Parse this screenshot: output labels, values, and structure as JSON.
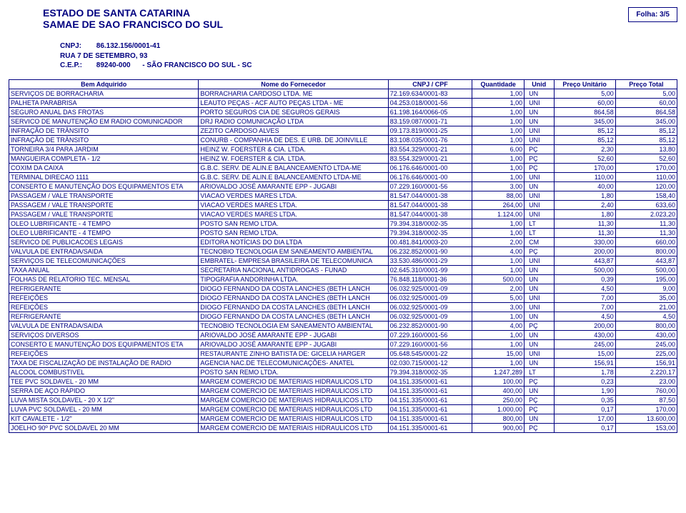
{
  "header": {
    "org_line1": "ESTADO DE SANTA CATARINA",
    "org_line2": "SAMAE DE SAO FRANCISCO DO SUL",
    "folha_label": "Folha: 3/5",
    "cnpj_label": "CNPJ:",
    "cnpj_value": "86.132.156/0001-41",
    "rua": "RUA 7 DE SETEMBRO, 93",
    "cep_label": "C.E.P.:",
    "cep_value": "89240-000",
    "cep_city": "- SÃO FRANCISCO DO SUL - SC"
  },
  "table": {
    "columns": {
      "bem": "Bem Adquirido",
      "forn": "Nome do Fornecedor",
      "cnpj": "CNPJ / CPF",
      "qtd": "Quantidade",
      "unid": "Unid",
      "pu": "Preço Unitário",
      "pt": "Preço Total"
    },
    "rows": [
      [
        "SERVIÇOS DE BORRACHARIA",
        "BORRACHARIA CARDOSO LTDA. ME",
        "72.169.634/0001-83",
        "1,00",
        "UN",
        "5,00",
        "5,00"
      ],
      [
        "PALHETA PARABRISA",
        "LEAUTO PEÇAS - ACF AUTO PEÇAS LTDA - ME",
        "04.253.018/0001-56",
        "1,00",
        "UNI",
        "60,00",
        "60,00"
      ],
      [
        "SEGURO ANUAL DAS FROTAS",
        "PORTO SEGUROS CIA DE SEGUROS GERAIS",
        "61.198.164/0066-05",
        "1,00",
        "UN",
        "864,58",
        "864,58"
      ],
      [
        "SERVICO DE MANUTENÇÃO EM RADIO COMUNICADOR",
        "DRJ RADIO COMUNICAÇÃO LTDA",
        "83.159.087/0001-71",
        "1,00",
        "UN",
        "345,00",
        "345,00"
      ],
      [
        "INFRAÇÃO DE TRÂNSITO",
        "ZEZITO CARDOSO ALVES",
        "09.173.819/0001-25",
        "1,00",
        "UNI",
        "85,12",
        "85,12"
      ],
      [
        "INFRAÇÃO DE TRÂNSITO",
        "CONURB - COMPANHIA DE DES. E URB. DE JOINVILLE",
        "83.108.035/0001-76",
        "1,00",
        "UNI",
        "85,12",
        "85,12"
      ],
      [
        "TORNEIRA 3/4 PARA JARDIM",
        "HEINZ W. FOERSTER & CIA. LTDA.",
        "83.554.329/0001-21",
        "6,00",
        "PÇ",
        "2,30",
        "13,80"
      ],
      [
        "MANGUEIRA COMPLETA - 1/2",
        "HEINZ W. FOERSTER & CIA. LTDA.",
        "83.554.329/0001-21",
        "1,00",
        "PÇ",
        "52,60",
        "52,60"
      ],
      [
        "COXIM DA CAIXA",
        "G.B.C. SERV. DE ALIN.E BALANCEAMENTO LTDA-ME",
        "06.176.646/0001-00",
        "1,00",
        "PÇ",
        "170,00",
        "170,00"
      ],
      [
        "TERMINAL DIRECAO 1111",
        "G.B.C. SERV. DE ALIN.E BALANCEAMENTO LTDA-ME",
        "06.176.646/0001-00",
        "1,00",
        "UNI",
        "110,00",
        "110,00"
      ],
      [
        "CONSERTO E MANUTENÇÃO DOS EQUIPAMENTOS ETA",
        "ARIOVALDO JOSÉ AMARANTE EPP - JUGABI",
        "07.229.160/0001-56",
        "3,00",
        "UN",
        "40,00",
        "120,00"
      ],
      [
        "PASSAGEM / VALE TRANSPORTE",
        "VIACAO VERDES MARES LTDA.",
        "81.547.044/0001-38",
        "88,00",
        "UNI",
        "1,80",
        "158,40"
      ],
      [
        "PASSAGEM / VALE TRANSPORTE",
        "VIACAO VERDES MARES LTDA.",
        "81.547.044/0001-38",
        "264,00",
        "UNI",
        "2,40",
        "633,60"
      ],
      [
        "PASSAGEM / VALE TRANSPORTE",
        "VIACAO VERDES MARES LTDA.",
        "81.547.044/0001-38",
        "1.124,00",
        "UNI",
        "1,80",
        "2.023,20"
      ],
      [
        "OLEO LUBRIFICANTE - 4 TEMPO",
        "POSTO SAN REMO LTDA.",
        "79.394.318/0002-35",
        "1,00",
        "LT",
        "11,30",
        "11,30"
      ],
      [
        "OLEO LUBRIFICANTE - 4 TEMPO",
        "POSTO SAN REMO LTDA.",
        "79.394.318/0002-35",
        "1,00",
        "LT",
        "11,30",
        "11,30"
      ],
      [
        "SERVICO DE PUBLICACOES LEGAIS",
        "EDITORA NOTÍCIAS DO DIA LTDA",
        "00.481.841/0003-20",
        "2,00",
        "CM",
        "330,00",
        "660,00"
      ],
      [
        "VALVULA DE ENTRADA/SAIDA",
        "TECNOBIO TECNOLOGIA EM SANEAMENTO AMBIENTAL",
        "06.232.852/0001-90",
        "4,00",
        "PÇ",
        "200,00",
        "800,00"
      ],
      [
        "SERVIÇOS DE TELECOMUNICAÇÕES",
        "EMBRATEL- EMPRESA BRASILEIRA DE TELECOMUNICA",
        "33.530.486/0001-29",
        "1,00",
        "UNI",
        "443,87",
        "443,87"
      ],
      [
        "TAXA ANUAL",
        "SECRETARIA NACIONAL ANTIDROGAS - FUNAD",
        "02.645.310/0001-99",
        "1,00",
        "UN",
        "500,00",
        "500,00"
      ],
      [
        "FOLHAS DE RELATORIO TEC. MENSAL",
        "TIPOGRAFIA ANDORINHA LTDA.",
        "76.848.118/0001-36",
        "500,00",
        "UN",
        "0,39",
        "195,00"
      ],
      [
        "REFRIGERANTE",
        "DIOGO FERNANDO DA COSTA LANCHES (BETH LANCH",
        "06.032.925/0001-09",
        "2,00",
        "UN",
        "4,50",
        "9,00"
      ],
      [
        "REFEIÇÕES",
        "DIOGO FERNANDO DA COSTA LANCHES (BETH LANCH",
        "06.032.925/0001-09",
        "5,00",
        "UNI",
        "7,00",
        "35,00"
      ],
      [
        "REFEIÇÕES",
        "DIOGO FERNANDO DA COSTA LANCHES (BETH LANCH",
        "06.032.925/0001-09",
        "3,00",
        "UNI",
        "7,00",
        "21,00"
      ],
      [
        "REFRIGERANTE",
        "DIOGO FERNANDO DA COSTA LANCHES (BETH LANCH",
        "06.032.925/0001-09",
        "1,00",
        "UN",
        "4,50",
        "4,50"
      ],
      [
        "VALVULA DE ENTRADA/SAIDA",
        "TECNOBIO TECNOLOGIA EM SANEAMENTO AMBIENTAL",
        "06.232.852/0001-90",
        "4,00",
        "PÇ",
        "200,00",
        "800,00"
      ],
      [
        "SERVIÇOS DIVERSOS",
        "ARIOVALDO JOSÉ AMARANTE EPP - JUGABI",
        "07.229.160/0001-56",
        "1,00",
        "UN",
        "430,00",
        "430,00"
      ],
      [
        "CONSERTO E MANUTENÇÃO DOS EQUIPAMENTOS ETA",
        "ARIOVALDO JOSÉ AMARANTE EPP - JUGABI",
        "07.229.160/0001-56",
        "1,00",
        "UN",
        "245,00",
        "245,00"
      ],
      [
        "REFEIÇÕES",
        "RESTAURANTE ZINHO BATISTA DE: GICELIA HARGER",
        "05.648.545/0001-22",
        "15,00",
        "UNI",
        "15,00",
        "225,00"
      ],
      [
        "TAXA DE FISCALIZAÇÃO DE INSTALAÇÃO DE RADIO",
        "AGENCIA NAC.DE TELECOMUNICAÇÕES- ANATEL",
        "02.030.715/0001-12",
        "1,00",
        "UN",
        "156,91",
        "156,91"
      ],
      [
        "ALCOOL COMBUSTIVEL",
        "POSTO SAN REMO LTDA.",
        "79.394.318/0002-35",
        "1.247,289",
        "LT",
        "1,78",
        "2.220,17"
      ],
      [
        "TEE PVC SOLDAVEL - 20 MM",
        "MARGEM COMERCIO DE MATERIAIS HIDRAULICOS LTD",
        "04.151.335/0001-61",
        "100,00",
        "PÇ",
        "0,23",
        "23,00"
      ],
      [
        "SERRA DE AÇO RÁPIDO",
        "MARGEM COMERCIO DE MATERIAIS HIDRAULICOS LTD",
        "04.151.335/0001-61",
        "400,00",
        "UN",
        "1,90",
        "760,00"
      ],
      [
        "LUVA MISTA SOLDAVEL - 20 X 1/2\"",
        "MARGEM COMERCIO DE MATERIAIS HIDRAULICOS LTD",
        "04.151.335/0001-61",
        "250,00",
        "PÇ",
        "0,35",
        "87,50"
      ],
      [
        "LUVA PVC SOLDAVEL - 20 MM",
        "MARGEM COMERCIO DE MATERIAIS HIDRAULICOS LTD",
        "04.151.335/0001-61",
        "1.000,00",
        "PÇ",
        "0,17",
        "170,00"
      ],
      [
        "KIT CAVALETE - 1/2\"",
        "MARGEM COMERCIO DE MATERIAIS HIDRAULICOS LTD",
        "04.151.335/0001-61",
        "800,00",
        "UN",
        "17,00",
        "13.600,00"
      ],
      [
        "JOELHO 90º PVC SOLDAVEL 20 MM",
        "MARGEM COMERCIO DE MATERIAIS HIDRAULICOS LTD",
        "04.151.335/0001-61",
        "900,00",
        "PÇ",
        "0,17",
        "153,00"
      ]
    ]
  }
}
